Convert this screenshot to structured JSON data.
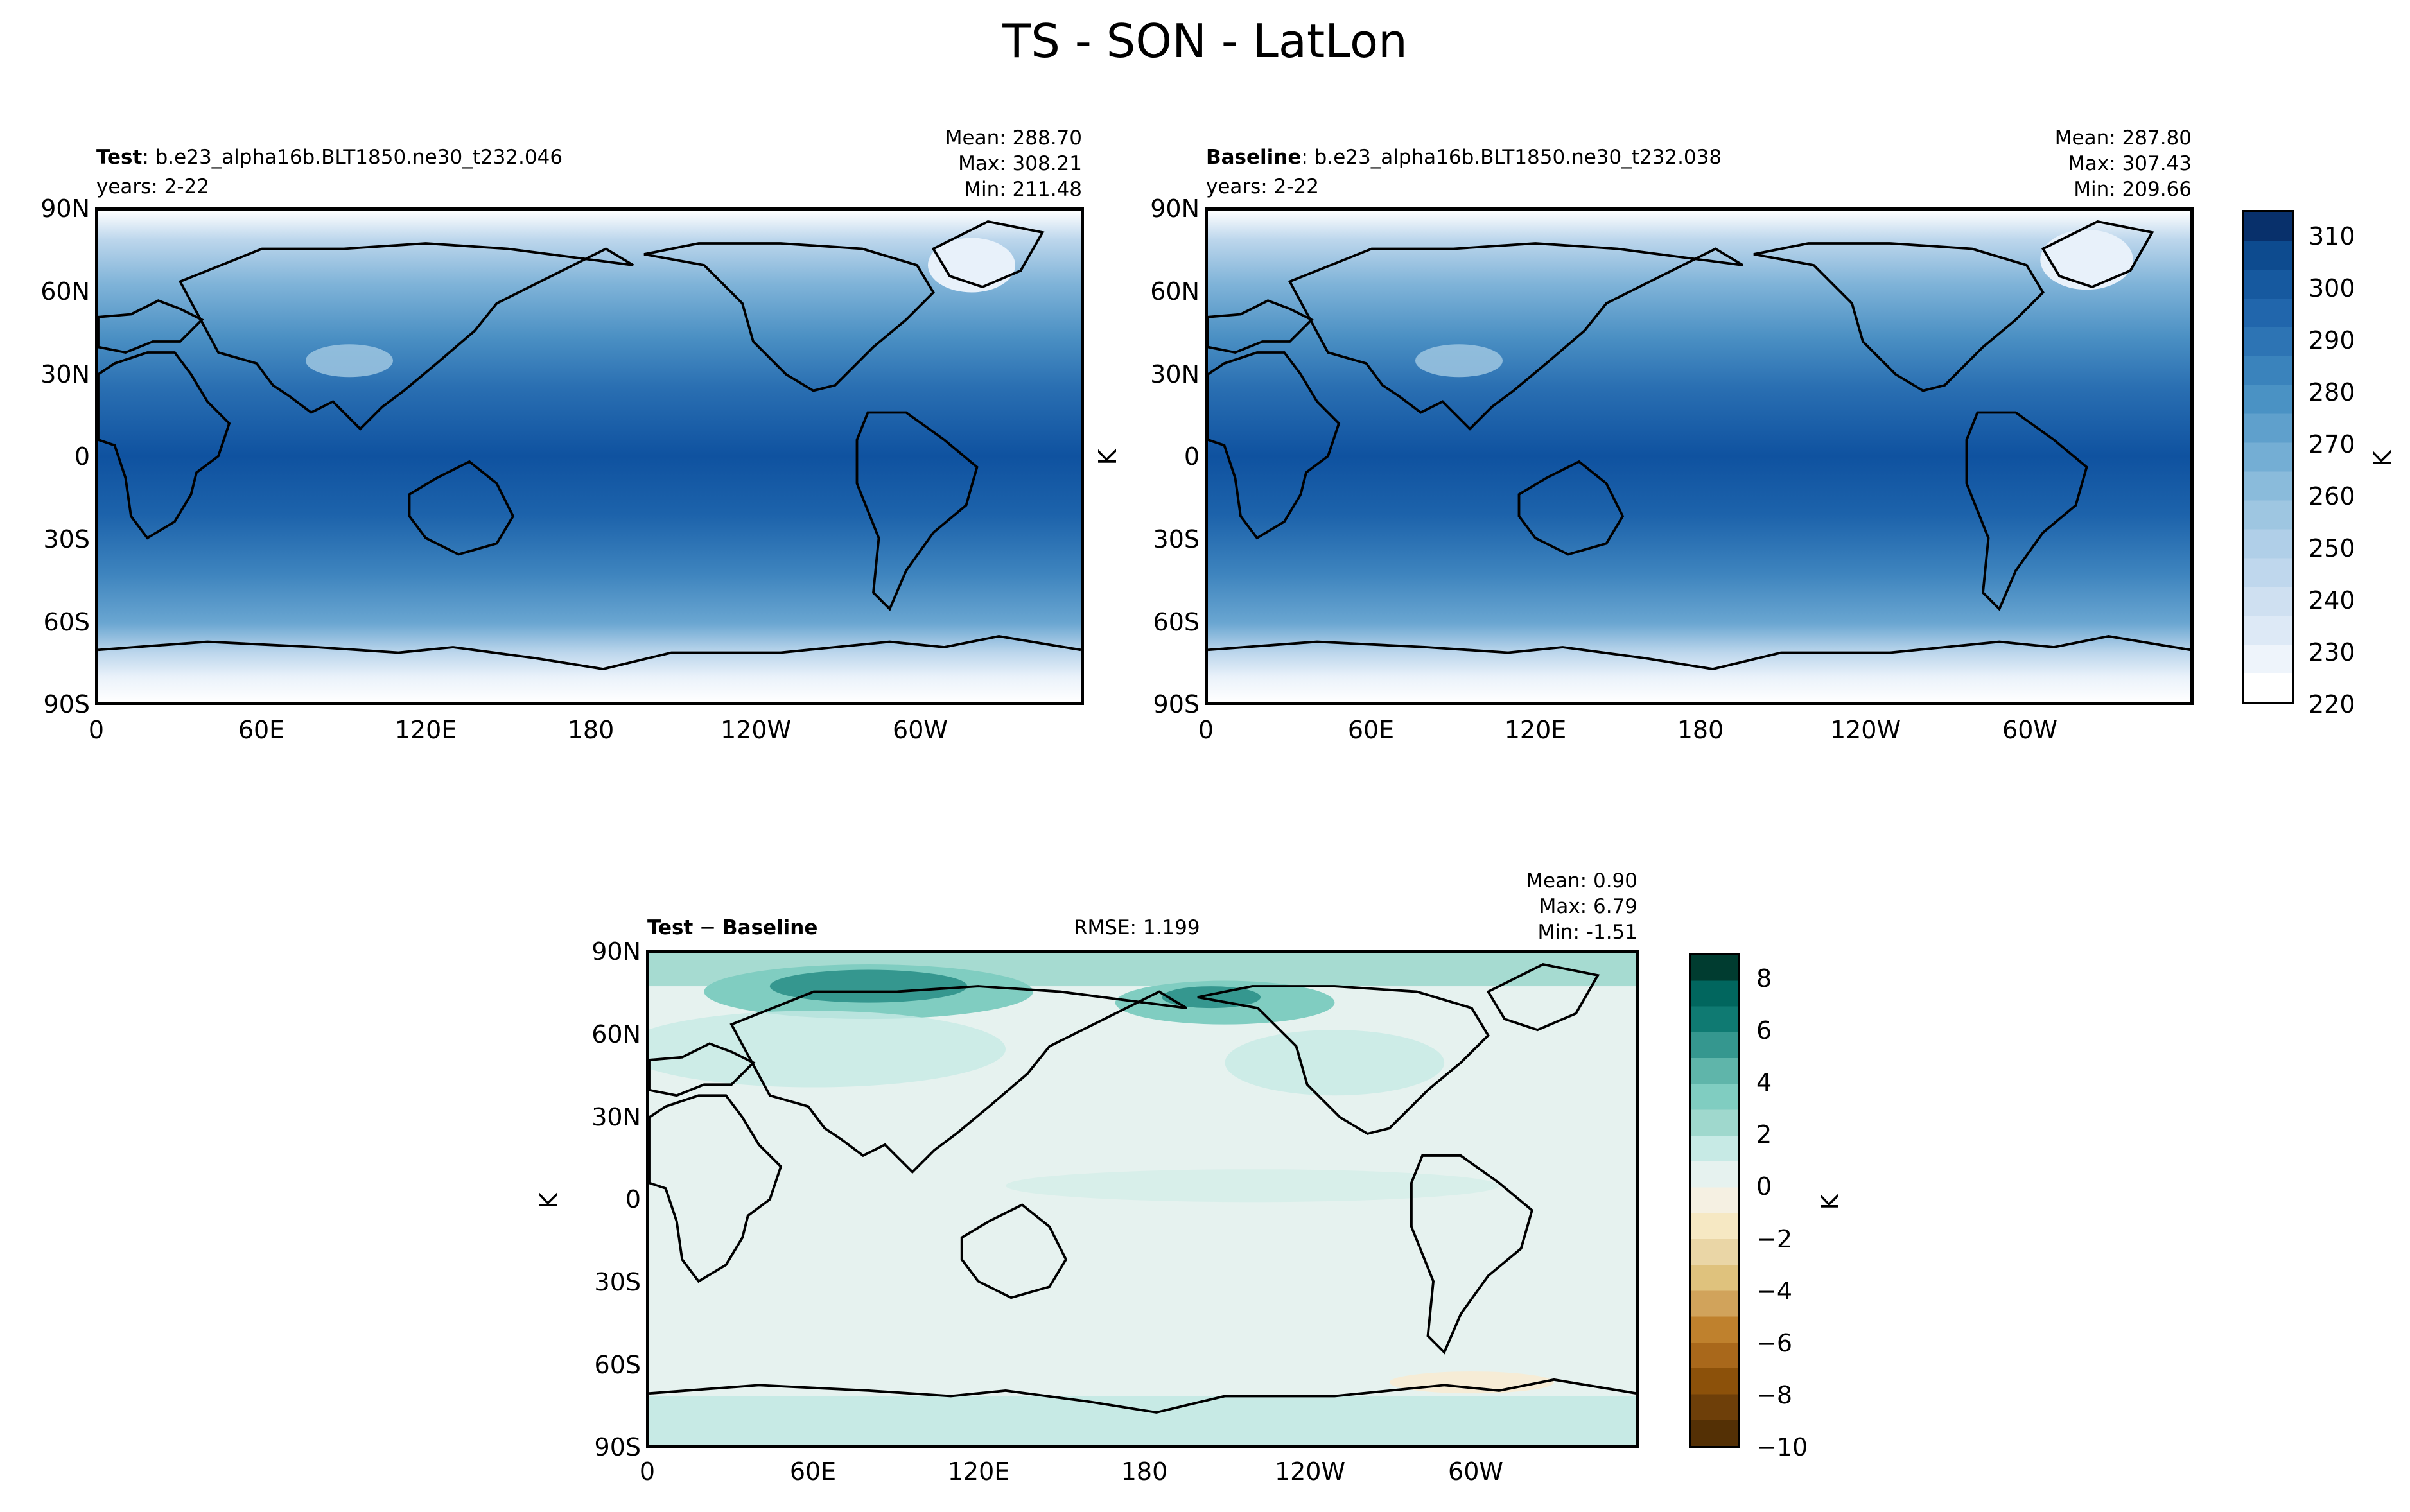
{
  "figure": {
    "title": "TS - SON - LatLon"
  },
  "panels": {
    "test": {
      "label_bold": "Test",
      "label_rest": ": b.e23_alpha16b.BLT1850.ne30_t232.046",
      "years": "years: 2-22",
      "stats": {
        "mean": "Mean: 288.70",
        "max": "Max: 308.21",
        "min": "Min: 211.48"
      }
    },
    "baseline": {
      "label_bold": "Baseline",
      "label_rest": ": b.e23_alpha16b.BLT1850.ne30_t232.038",
      "years": "years: 2-22",
      "stats": {
        "mean": "Mean: 287.80",
        "max": "Max: 307.43",
        "min": "Min: 209.66"
      }
    },
    "diff": {
      "label_bold_a": "Test",
      "label_sep": " − ",
      "label_bold_b": "Baseline",
      "rmse": "RMSE: 1.199",
      "stats": {
        "mean": "Mean:  0.90",
        "max": "Max:  6.79",
        "min": "Min: -1.51"
      }
    }
  },
  "axes": {
    "lat_ticks": [
      "90N",
      "60N",
      "30N",
      "0",
      "30S",
      "60S",
      "90S"
    ],
    "lon_ticks": [
      "0",
      "60E",
      "120E",
      "180",
      "120W",
      "60W"
    ],
    "ylabel": "K"
  },
  "colorbars": {
    "ts": {
      "label": "K",
      "ticks": [
        "310",
        "300",
        "290",
        "280",
        "270",
        "260",
        "250",
        "240",
        "230",
        "220"
      ],
      "range": [
        220,
        315
      ],
      "colors": [
        "#ffffff",
        "#eef4fb",
        "#dde9f6",
        "#cfe0f1",
        "#bfd7ed",
        "#b0cfe8",
        "#9ec6e1",
        "#8abbdb",
        "#74aed4",
        "#5fa0cc",
        "#4a92c4",
        "#3a83bc",
        "#2d74b4",
        "#2166ac",
        "#16599f",
        "#0d4b8f",
        "#08306b"
      ],
      "colormap": "Blues"
    },
    "diff": {
      "label": "K",
      "ticks": [
        "8",
        "6",
        "4",
        "2",
        "0",
        "−2",
        "−4",
        "−6",
        "−8",
        "−10"
      ],
      "range": [
        -10,
        9
      ],
      "colors": [
        "#543005",
        "#6e3f09",
        "#8c510a",
        "#a9681b",
        "#bf812d",
        "#d1a35b",
        "#dfc27d",
        "#ead6a6",
        "#f6e8c3",
        "#f5f0e2",
        "#e6f2ef",
        "#c7eae5",
        "#9fd8cd",
        "#80cdc1",
        "#5fb5aa",
        "#35978f",
        "#0f7a72",
        "#01665e",
        "#003c30"
      ],
      "colormap": "BrBG"
    }
  }
}
